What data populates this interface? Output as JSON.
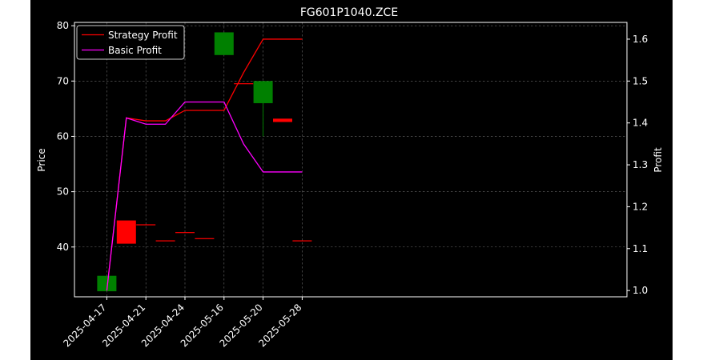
{
  "chart_data": {
    "type": "candlestick+line",
    "title": "FG601P1040.ZCE",
    "xlabel": "",
    "ylabel_left": "Price",
    "ylabel_right": "Profit",
    "ylim_left": [
      31,
      80.6
    ],
    "ylim_right": [
      0.985,
      1.64
    ],
    "x_tick_labels": [
      "2025-04-17",
      "2025-04-21",
      "2025-04-24",
      "2025-05-16",
      "2025-05-20",
      "2025-05-28"
    ],
    "y_ticks_left": [
      40,
      50,
      60,
      70,
      80
    ],
    "y_ticks_right": [
      1.0,
      1.1,
      1.2,
      1.3,
      1.4,
      1.5,
      1.6
    ],
    "grid": true,
    "legend_position": "top-left",
    "candles": [
      {
        "i": 0,
        "open": 32.0,
        "close": 34.8,
        "high": 34.8,
        "low": 32.0,
        "color": "green"
      },
      {
        "i": 1,
        "open": 44.8,
        "close": 40.6,
        "high": 44.8,
        "low": 40.6,
        "color": "red"
      },
      {
        "i": 2,
        "open": 44.1,
        "close": 44.0,
        "high": 44.1,
        "low": 44.0,
        "color": "red"
      },
      {
        "i": 3,
        "open": 41.2,
        "close": 41.1,
        "high": 41.2,
        "low": 41.1,
        "color": "red"
      },
      {
        "i": 4,
        "open": 42.7,
        "close": 42.6,
        "high": 42.7,
        "low": 42.6,
        "color": "red"
      },
      {
        "i": 5,
        "open": 41.6,
        "close": 41.5,
        "high": 41.6,
        "low": 41.5,
        "color": "red"
      },
      {
        "i": 6,
        "open": 74.7,
        "close": 78.8,
        "high": 78.8,
        "low": 74.7,
        "color": "green"
      },
      {
        "i": 7,
        "open": 69.6,
        "close": 69.5,
        "high": 69.6,
        "low": 69.5,
        "color": "red"
      },
      {
        "i": 8,
        "open": 66.0,
        "close": 70.0,
        "high": 70.0,
        "low": 60.0,
        "color": "green"
      },
      {
        "i": 9,
        "open": 63.2,
        "close": 62.6,
        "high": 63.2,
        "low": 62.6,
        "color": "red"
      },
      {
        "i": 10,
        "open": 41.2,
        "close": 41.1,
        "high": 41.2,
        "low": 41.1,
        "color": "red"
      }
    ],
    "series": [
      {
        "name": "Strategy Profit",
        "color": "#ff0000",
        "values": [
          1.0,
          1.412,
          1.405,
          1.405,
          1.43,
          1.43,
          1.43,
          1.52,
          1.6,
          1.6,
          1.6
        ]
      },
      {
        "name": "Basic Profit",
        "color": "#ff00ff",
        "values": [
          1.0,
          1.412,
          1.397,
          1.397,
          1.45,
          1.45,
          1.45,
          1.35,
          1.283,
          1.283,
          1.283
        ]
      }
    ],
    "colors": {
      "up": "#008000",
      "down": "#ff0000",
      "grid": "#b0b0b0"
    }
  }
}
